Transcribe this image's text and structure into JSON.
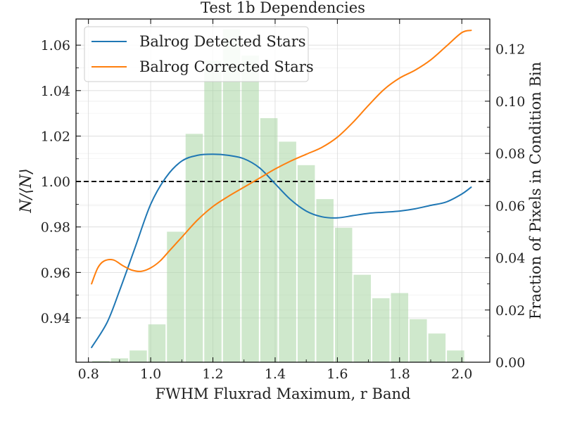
{
  "chart_data": {
    "type": "line",
    "title": "Test 1b Dependencies",
    "xlabel": "FWHM Fluxrad Maximum, r Band",
    "ylabel": "N/⟨N⟩",
    "y2label": "Fraction of Pixels in Condition Bin",
    "xlim": [
      0.76,
      2.09
    ],
    "ylim": [
      0.9205,
      1.0715
    ],
    "y2lim": [
      0.0,
      0.1315
    ],
    "x_ticks": [
      0.8,
      1.0,
      1.2,
      1.4,
      1.6,
      1.8,
      2.0
    ],
    "x_tick_labels": [
      "0.8",
      "1.0",
      "1.2",
      "1.4",
      "1.6",
      "1.8",
      "2.0"
    ],
    "y_ticks": [
      0.94,
      0.96,
      0.98,
      1.0,
      1.02,
      1.04,
      1.06
    ],
    "y_tick_labels": [
      "0.94",
      "0.96",
      "0.98",
      "1.00",
      "1.02",
      "1.04",
      "1.06"
    ],
    "y2_ticks": [
      0.0,
      0.02,
      0.04,
      0.06,
      0.08,
      0.1,
      0.12
    ],
    "y2_tick_labels": [
      "0.00",
      "0.02",
      "0.04",
      "0.06",
      "0.08",
      "0.10",
      "0.12"
    ],
    "grid": true,
    "legend_position": "top-left",
    "reference_line": {
      "y": 1.0,
      "style": "dashed",
      "color": "#000000"
    },
    "series": [
      {
        "name": "Balrog Detected Stars",
        "color": "#1f77b4",
        "x": [
          0.81,
          0.86,
          0.9,
          0.95,
          1.0,
          1.05,
          1.1,
          1.15,
          1.2,
          1.25,
          1.3,
          1.35,
          1.4,
          1.45,
          1.5,
          1.55,
          1.6,
          1.65,
          1.7,
          1.75,
          1.8,
          1.85,
          1.9,
          1.95,
          2.0,
          2.03
        ],
        "y": [
          0.927,
          0.938,
          0.952,
          0.971,
          0.99,
          1.002,
          1.009,
          1.0115,
          1.012,
          1.0115,
          1.01,
          1.006,
          0.999,
          0.992,
          0.987,
          0.9845,
          0.984,
          0.985,
          0.986,
          0.9865,
          0.987,
          0.988,
          0.9895,
          0.991,
          0.9945,
          0.9975
        ]
      },
      {
        "name": "Balrog Corrected Stars",
        "color": "#ff7f0e",
        "x": [
          0.81,
          0.83,
          0.85,
          0.88,
          0.91,
          0.94,
          0.97,
          1.0,
          1.03,
          1.06,
          1.1,
          1.15,
          1.2,
          1.25,
          1.3,
          1.35,
          1.4,
          1.45,
          1.5,
          1.55,
          1.6,
          1.65,
          1.7,
          1.75,
          1.8,
          1.85,
          1.9,
          1.95,
          2.0,
          2.03
        ],
        "y": [
          0.955,
          0.962,
          0.965,
          0.9655,
          0.963,
          0.961,
          0.9605,
          0.962,
          0.965,
          0.9695,
          0.9755,
          0.983,
          0.989,
          0.9935,
          0.9975,
          1.0015,
          1.0055,
          1.009,
          1.012,
          1.015,
          1.0195,
          1.026,
          1.0335,
          1.0405,
          1.0455,
          1.049,
          1.0535,
          1.0595,
          1.0655,
          1.0665
        ]
      }
    ],
    "histogram": {
      "name": "Fraction of Pixels in Condition Bin",
      "color": "#a8d5a2",
      "axis": "right",
      "bin_width": 0.06,
      "bin_centers": [
        0.84,
        0.9,
        0.96,
        1.02,
        1.08,
        1.14,
        1.2,
        1.26,
        1.32,
        1.38,
        1.44,
        1.5,
        1.56,
        1.62,
        1.68,
        1.74,
        1.8,
        1.86,
        1.92,
        1.98
      ],
      "values": [
        0.0005,
        0.0015,
        0.0045,
        0.0145,
        0.05,
        0.0875,
        0.1155,
        0.1275,
        0.1175,
        0.0935,
        0.0845,
        0.0755,
        0.0625,
        0.0515,
        0.0335,
        0.0245,
        0.0265,
        0.0165,
        0.011,
        0.0045
      ]
    }
  }
}
